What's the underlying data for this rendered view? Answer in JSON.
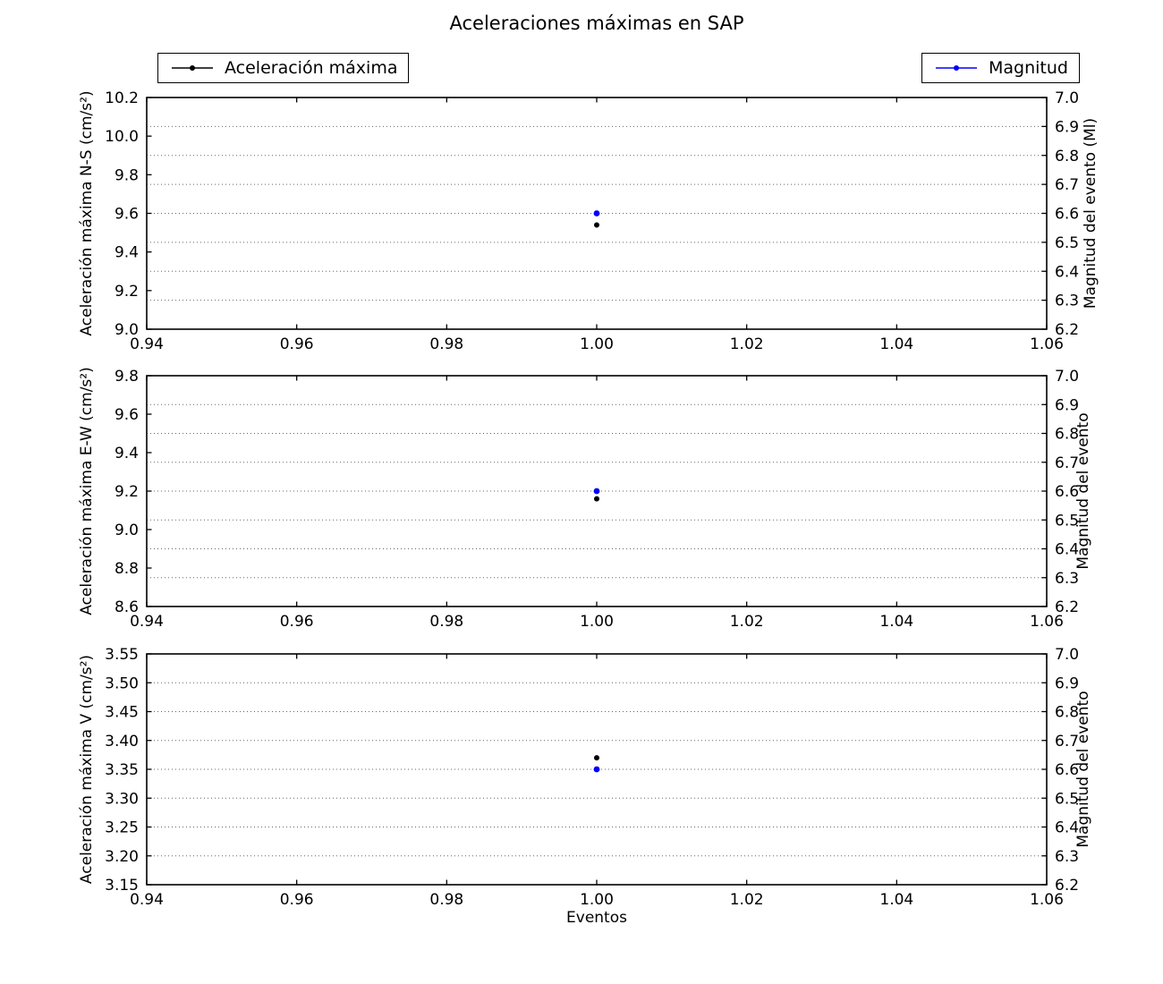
{
  "title": "Aceleraciones máximas en SAP",
  "xlabel": "Eventos",
  "legend": {
    "acceleration": "Aceleración máxima",
    "magnitude": "Magnitud"
  },
  "colors": {
    "acceleration": "#000000",
    "magnitude": "#0000ff",
    "grid": "#666666",
    "frame": "#000000",
    "background": "#ffffff"
  },
  "x_axis": {
    "lim": [
      0.94,
      1.06
    ],
    "ticks": [
      0.94,
      0.96,
      0.98,
      1.0,
      1.02,
      1.04,
      1.06
    ],
    "tick_labels": [
      "0.94",
      "0.96",
      "0.98",
      "1.00",
      "1.02",
      "1.04",
      "1.06"
    ]
  },
  "chart_data": [
    {
      "type": "scatter",
      "name": "aceleracion-ns",
      "ylabel_left": "Aceleración máxima N-S (cm/s²)",
      "ylabel_right": "Magnitud del evento (Ml)",
      "ylim_left": [
        9.0,
        10.2
      ],
      "yticks_left": [
        9.0,
        9.2,
        9.4,
        9.6,
        9.8,
        10.0,
        10.2
      ],
      "ytick_labels_left": [
        "9.0",
        "9.2",
        "9.4",
        "9.6",
        "9.8",
        "10.0",
        "10.2"
      ],
      "ylim_right": [
        6.2,
        7.0
      ],
      "yticks_right": [
        6.2,
        6.3,
        6.4,
        6.5,
        6.6,
        6.7,
        6.8,
        6.9,
        7.0
      ],
      "ytick_labels_right": [
        "6.2",
        "6.3",
        "6.4",
        "6.5",
        "6.6",
        "6.7",
        "6.8",
        "6.9",
        "7.0"
      ],
      "grid": "horizontal-dotted-at-right-ticks",
      "series": [
        {
          "name": "Aceleración máxima",
          "axis": "left",
          "color": "#000000",
          "x": [
            1.0
          ],
          "y": [
            9.54
          ]
        },
        {
          "name": "Magnitud",
          "axis": "right",
          "color": "#0000ff",
          "x": [
            1.0
          ],
          "y": [
            6.6
          ]
        }
      ]
    },
    {
      "type": "scatter",
      "name": "aceleracion-ew",
      "ylabel_left": "Aceleración máxima E-W (cm/s²)",
      "ylabel_right": "Magnitud del evento",
      "ylim_left": [
        8.6,
        9.8
      ],
      "yticks_left": [
        8.6,
        8.8,
        9.0,
        9.2,
        9.4,
        9.6,
        9.8
      ],
      "ytick_labels_left": [
        "8.6",
        "8.8",
        "9.0",
        "9.2",
        "9.4",
        "9.6",
        "9.8"
      ],
      "ylim_right": [
        6.2,
        7.0
      ],
      "yticks_right": [
        6.2,
        6.3,
        6.4,
        6.5,
        6.6,
        6.7,
        6.8,
        6.9,
        7.0
      ],
      "ytick_labels_right": [
        "6.2",
        "6.3",
        "6.4",
        "6.5",
        "6.6",
        "6.7",
        "6.8",
        "6.9",
        "7.0"
      ],
      "grid": "horizontal-dotted-at-right-ticks",
      "series": [
        {
          "name": "Aceleración máxima",
          "axis": "left",
          "color": "#000000",
          "x": [
            1.0
          ],
          "y": [
            9.16
          ]
        },
        {
          "name": "Magnitud",
          "axis": "right",
          "color": "#0000ff",
          "x": [
            1.0
          ],
          "y": [
            6.6
          ]
        }
      ]
    },
    {
      "type": "scatter",
      "name": "aceleracion-v",
      "ylabel_left": "Aceleración máxima V (cm/s²)",
      "ylabel_right": "Magnitud del evento",
      "ylim_left": [
        3.15,
        3.55
      ],
      "yticks_left": [
        3.15,
        3.2,
        3.25,
        3.3,
        3.35,
        3.4,
        3.45,
        3.5,
        3.55
      ],
      "ytick_labels_left": [
        "3.15",
        "3.20",
        "3.25",
        "3.30",
        "3.35",
        "3.40",
        "3.45",
        "3.50",
        "3.55"
      ],
      "ylim_right": [
        6.2,
        7.0
      ],
      "yticks_right": [
        6.2,
        6.3,
        6.4,
        6.5,
        6.6,
        6.7,
        6.8,
        6.9,
        7.0
      ],
      "ytick_labels_right": [
        "6.2",
        "6.3",
        "6.4",
        "6.5",
        "6.6",
        "6.7",
        "6.8",
        "6.9",
        "7.0"
      ],
      "grid": "horizontal-dotted-at-right-ticks",
      "series": [
        {
          "name": "Aceleración máxima",
          "axis": "left",
          "color": "#000000",
          "x": [
            1.0
          ],
          "y": [
            3.37
          ]
        },
        {
          "name": "Magnitud",
          "axis": "right",
          "color": "#0000ff",
          "x": [
            1.0
          ],
          "y": [
            6.6
          ]
        }
      ]
    }
  ]
}
